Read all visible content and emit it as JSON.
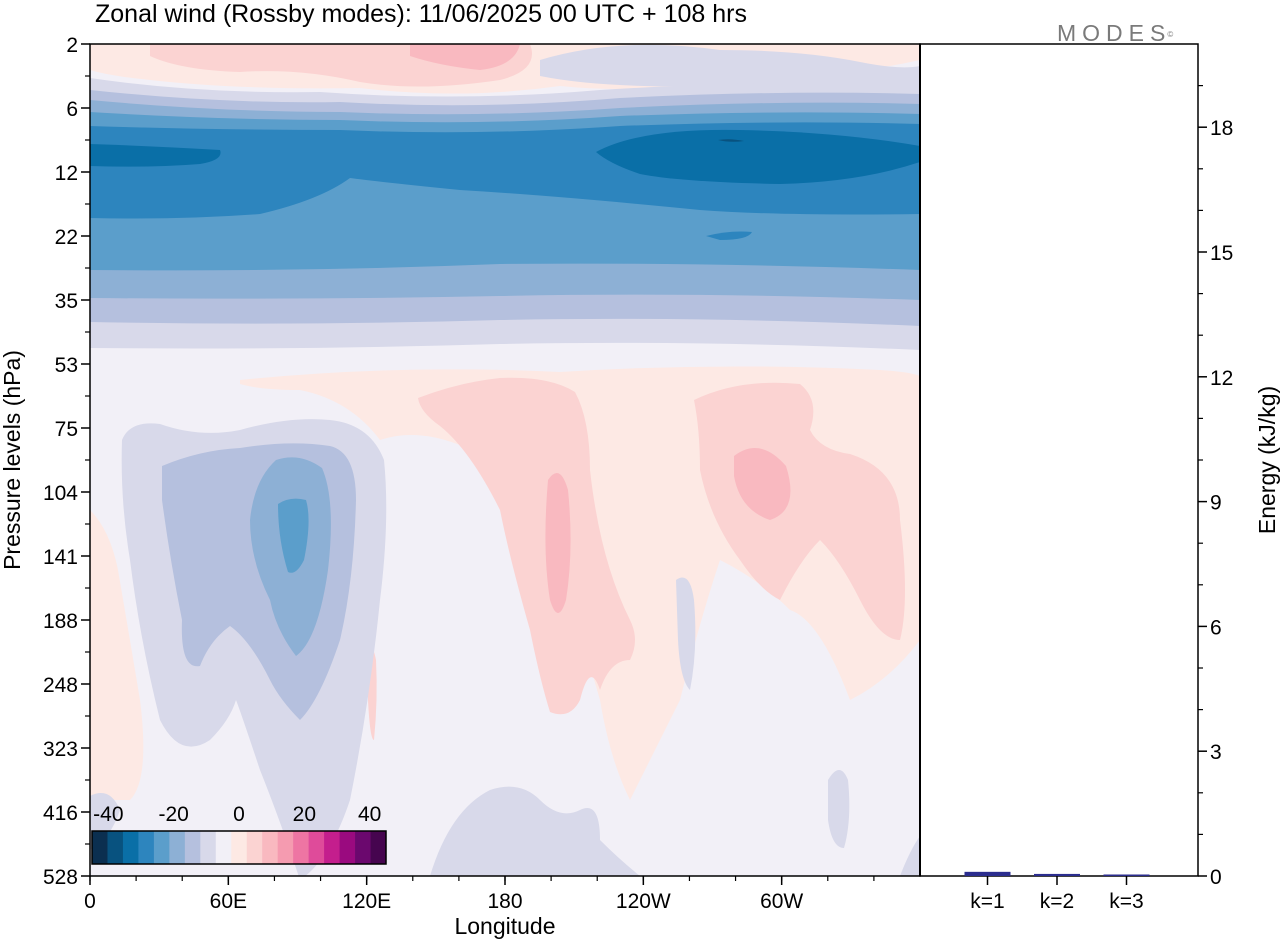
{
  "title": "Zonal wind (Rossby modes):  11/06/2025  00 UTC  + 108 hrs",
  "logo": {
    "text": "MODES",
    "mark": "©"
  },
  "chart_data": [
    {
      "type": "heatmap",
      "xlabel": "Longitude",
      "ylabel": "Pressure levels (hPa)",
      "x_ticks": [
        "0",
        "60E",
        "120E",
        "180",
        "120W",
        "60W"
      ],
      "y_ticks": [
        "2",
        "6",
        "12",
        "22",
        "35",
        "53",
        "75",
        "104",
        "141",
        "188",
        "248",
        "323",
        "416",
        "528"
      ],
      "x_range": [
        "0",
        "360 (wraps to 0)"
      ],
      "y_scale": "log",
      "colorbar": {
        "labels": [
          "-40",
          "-20",
          "0",
          "20",
          "40"
        ],
        "levels": [
          -45,
          -40,
          -35,
          -30,
          -25,
          -20,
          -15,
          -10,
          -5,
          0,
          5,
          10,
          15,
          20,
          25,
          30,
          35,
          40,
          45
        ],
        "colors": [
          "#0b2f50",
          "#08527f",
          "#0a6fa7",
          "#2d85be",
          "#5b9ecb",
          "#8db0d5",
          "#b5c0de",
          "#d8d9ea",
          "#f2f0f7",
          "#fde9e4",
          "#fbd3d2",
          "#f9b9c0",
          "#f59bb0",
          "#ee75a3",
          "#df4b9a",
          "#c41e8d",
          "#9a0a7f",
          "#6b086e",
          "#46054f"
        ]
      },
      "regions": [
        {
          "level": "-40 to -35",
          "lon_range": [
            "0",
            "40E"
          ],
          "pressure_hPa": [
            9,
            11
          ]
        },
        {
          "level": "-40 to -35",
          "lon_range": [
            "100W",
            "0"
          ],
          "pressure_hPa": [
            8,
            12
          ]
        },
        {
          "level": "-35 to -30",
          "lon_range": [
            "0",
            "360"
          ],
          "pressure_hPa": [
            7,
            16
          ]
        },
        {
          "level": "-30 to -25",
          "lon_range": [
            "0",
            "360"
          ],
          "pressure_hPa": [
            14,
            26
          ]
        },
        {
          "level": "-25 to -20",
          "lon_range": [
            "0",
            "360"
          ],
          "pressure_hPa": [
            26,
            32
          ]
        },
        {
          "level": "-25 to -20",
          "lon_range": [
            "80E",
            "100E"
          ],
          "pressure_hPa": [
            110,
            160
          ]
        },
        {
          "level": "-20 to -15",
          "lon_range": [
            "60E",
            "110E"
          ],
          "pressure_hPa": [
            90,
            210
          ]
        },
        {
          "level": "-15 to -10",
          "lon_range": [
            "30E",
            "120E"
          ],
          "pressure_hPa": [
            80,
            260
          ]
        },
        {
          "level": "10 to 15",
          "lon_range": [
            "165W",
            "160W"
          ],
          "pressure_hPa": [
            125,
            170
          ]
        },
        {
          "level": "10 to 15",
          "lon_range": [
            "70W",
            "55W"
          ],
          "pressure_hPa": [
            95,
            135
          ]
        },
        {
          "level": "5 to 10",
          "lon_range": [
            "145E",
            "150W"
          ],
          "pressure_hPa": [
            65,
            280
          ]
        },
        {
          "level": "5 to 10",
          "lon_range": [
            "90W",
            "10W"
          ],
          "pressure_hPa": [
            65,
            230
          ]
        },
        {
          "level": "5 to 10",
          "lon_range": [
            "60E",
            "135W"
          ],
          "pressure_hPa": [
            2,
            4
          ]
        }
      ]
    },
    {
      "type": "bar",
      "categories": [
        "k=1",
        "k=2",
        "k=3"
      ],
      "values": [
        0.1,
        0.05,
        0.03
      ],
      "ylabel": "Energy (kJ/kg)",
      "y_ticks": [
        "0",
        "3",
        "6",
        "9",
        "12",
        "15",
        "18"
      ],
      "ylim": [
        0,
        20
      ],
      "bar_color": "#2b2d8e"
    }
  ]
}
